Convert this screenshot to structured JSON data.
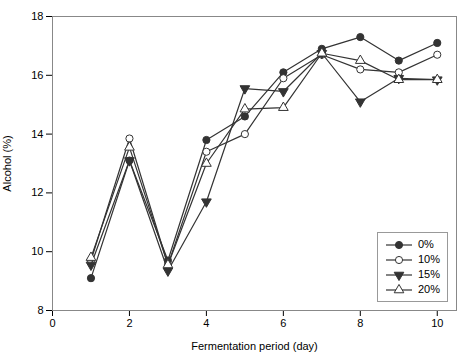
{
  "chart_data": {
    "type": "line",
    "xlabel": "Fermentation period (day)",
    "ylabel": "Alcohol (%)",
    "x": [
      1,
      2,
      3,
      4,
      5,
      6,
      7,
      8,
      9,
      10
    ],
    "xlim": [
      0,
      10.5
    ],
    "ylim": [
      8,
      18
    ],
    "xticks": [
      0,
      2,
      4,
      6,
      8,
      10
    ],
    "yticks": [
      8,
      10,
      12,
      14,
      16,
      18
    ],
    "legend": "lower right",
    "series": [
      {
        "name": "0%",
        "color": "#333333",
        "marker": "filled_circle",
        "values": [
          9.1,
          13.1,
          9.7,
          13.8,
          14.6,
          16.1,
          16.9,
          17.3,
          16.5,
          17.1
        ]
      },
      {
        "name": "10%",
        "color": "#333333",
        "marker": "open_circle",
        "values": [
          9.7,
          13.85,
          9.55,
          13.4,
          14.0,
          15.9,
          16.7,
          16.2,
          16.1,
          16.7
        ]
      },
      {
        "name": "15%",
        "color": "#333333",
        "marker": "filled_triangle_down",
        "values": [
          9.55,
          13.1,
          9.35,
          11.7,
          15.55,
          15.45,
          16.75,
          15.1,
          15.9,
          15.85
        ]
      },
      {
        "name": "20%",
        "color": "#333333",
        "marker": "open_triangle_up",
        "values": [
          9.8,
          13.55,
          9.55,
          13.0,
          14.85,
          14.9,
          16.75,
          16.5,
          15.85,
          15.85
        ]
      }
    ]
  }
}
